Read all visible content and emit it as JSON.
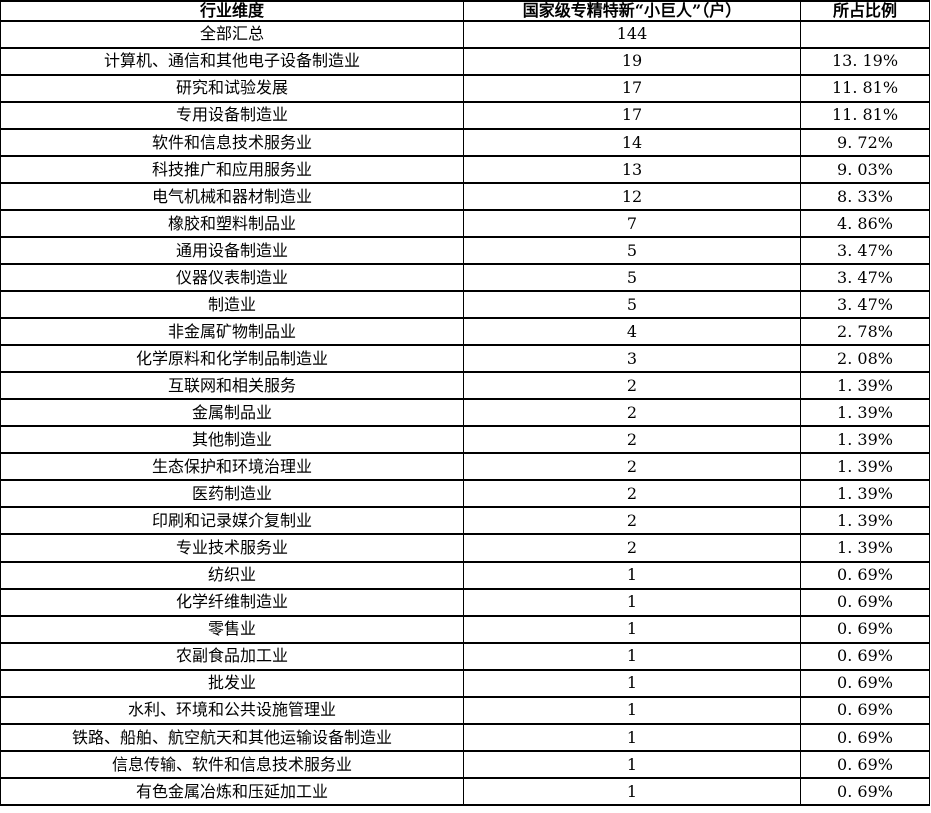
{
  "colors": {
    "border": "#000000",
    "text": "#000000",
    "background": "#ffffff"
  },
  "chart_data": {
    "type": "table",
    "columns": [
      "行业维度",
      "国家级专精特新“小巨人”（户）",
      "所占比例"
    ],
    "rows": [
      [
        "全部汇总",
        "144",
        ""
      ],
      [
        "计算机、通信和其他电子设备制造业",
        "19",
        "13. 19%"
      ],
      [
        "研究和试验发展",
        "17",
        "11. 81%"
      ],
      [
        "专用设备制造业",
        "17",
        "11. 81%"
      ],
      [
        "软件和信息技术服务业",
        "14",
        "9. 72%"
      ],
      [
        "科技推广和应用服务业",
        "13",
        "9. 03%"
      ],
      [
        "电气机械和器材制造业",
        "12",
        "8. 33%"
      ],
      [
        "橡胶和塑料制品业",
        "7",
        "4. 86%"
      ],
      [
        "通用设备制造业",
        "5",
        "3. 47%"
      ],
      [
        "仪器仪表制造业",
        "5",
        "3. 47%"
      ],
      [
        "制造业",
        "5",
        "3. 47%"
      ],
      [
        "非金属矿物制品业",
        "4",
        "2. 78%"
      ],
      [
        "化学原料和化学制品制造业",
        "3",
        "2. 08%"
      ],
      [
        "互联网和相关服务",
        "2",
        "1. 39%"
      ],
      [
        "金属制品业",
        "2",
        "1. 39%"
      ],
      [
        "其他制造业",
        "2",
        "1. 39%"
      ],
      [
        "生态保护和环境治理业",
        "2",
        "1. 39%"
      ],
      [
        "医药制造业",
        "2",
        "1. 39%"
      ],
      [
        "印刷和记录媒介复制业",
        "2",
        "1. 39%"
      ],
      [
        "专业技术服务业",
        "2",
        "1. 39%"
      ],
      [
        "纺织业",
        "1",
        "0. 69%"
      ],
      [
        "化学纤维制造业",
        "1",
        "0. 69%"
      ],
      [
        "零售业",
        "1",
        "0. 69%"
      ],
      [
        "农副食品加工业",
        "1",
        "0. 69%"
      ],
      [
        "批发业",
        "1",
        "0. 69%"
      ],
      [
        "水利、环境和公共设施管理业",
        "1",
        "0. 69%"
      ],
      [
        "铁路、船舶、航空航天和其他运输设备制造业",
        "1",
        "0. 69%"
      ],
      [
        "信息传输、软件和信息技术服务业",
        "1",
        "0. 69%"
      ],
      [
        "有色金属冶炼和压延加工业",
        "1",
        "0. 69%"
      ]
    ]
  }
}
